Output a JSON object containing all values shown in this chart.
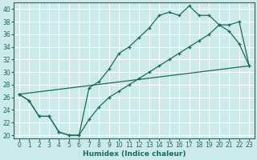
{
  "xlabel": "Humidex (Indice chaleur)",
  "bg_color": "#cceaea",
  "grid_color": "#ffffff",
  "line_color": "#1a6b5a",
  "xlim": [
    -0.5,
    23.5
  ],
  "ylim": [
    19.5,
    41
  ],
  "xticks": [
    0,
    1,
    2,
    3,
    4,
    5,
    6,
    7,
    8,
    9,
    10,
    11,
    12,
    13,
    14,
    15,
    16,
    17,
    18,
    19,
    20,
    21,
    22,
    23
  ],
  "yticks": [
    20,
    22,
    24,
    26,
    28,
    30,
    32,
    34,
    36,
    38,
    40
  ],
  "line1_x": [
    0,
    1,
    2,
    3,
    4,
    5,
    6,
    7,
    8,
    9,
    10,
    11,
    12,
    13,
    14,
    15,
    16,
    17,
    18,
    19,
    20,
    21,
    22,
    23
  ],
  "line1_y": [
    26.5,
    25.5,
    23.0,
    23.0,
    20.5,
    20.0,
    20.0,
    27.5,
    28.5,
    30.5,
    33.0,
    34.0,
    35.5,
    37.0,
    39.0,
    39.5,
    39.0,
    40.5,
    39.0,
    39.0,
    37.5,
    36.5,
    34.5,
    31.0
  ],
  "line2_x": [
    0,
    1,
    2,
    3,
    4,
    5,
    6,
    7,
    8,
    9,
    10,
    11,
    12,
    13,
    14,
    15,
    16,
    17,
    18,
    19,
    20,
    21,
    22,
    23
  ],
  "line2_y": [
    26.5,
    25.5,
    23.0,
    23.0,
    20.5,
    20.0,
    20.0,
    22.5,
    24.5,
    26.0,
    27.0,
    28.0,
    29.0,
    30.0,
    31.0,
    32.0,
    33.0,
    34.0,
    35.0,
    36.0,
    37.5,
    37.5,
    38.0,
    31.0
  ],
  "line3_x": [
    0,
    23
  ],
  "line3_y": [
    26.5,
    31.0
  ]
}
